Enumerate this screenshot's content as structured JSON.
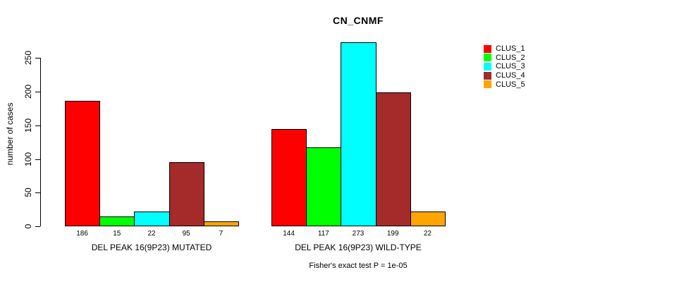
{
  "chart_data": {
    "type": "bar",
    "title": "CN_CNMF",
    "ylabel": "number of cases",
    "yticks": [
      0,
      50,
      100,
      150,
      200,
      250
    ],
    "ylim": [
      0,
      273
    ],
    "grid": false,
    "legend_position": "right",
    "categories": [
      "DEL PEAK 16(9P23) MUTATED",
      "DEL PEAK 16(9P23) WILD-TYPE"
    ],
    "series": [
      {
        "name": "CLUS_1",
        "color": "#ff0000",
        "values": [
          186,
          144
        ]
      },
      {
        "name": "CLUS_2",
        "color": "#00ff00",
        "values": [
          15,
          117
        ]
      },
      {
        "name": "CLUS_3",
        "color": "#00ffff",
        "values": [
          22,
          273
        ]
      },
      {
        "name": "CLUS_4",
        "color": "#a52a2a",
        "values": [
          95,
          199
        ]
      },
      {
        "name": "CLUS_5",
        "color": "#ffa500",
        "values": [
          7,
          22
        ]
      }
    ],
    "bar_value_labels": [
      [
        "186",
        "15",
        "22",
        "95",
        "7"
      ],
      [
        "144",
        "117",
        "273",
        "199",
        "22"
      ]
    ],
    "footnote": "Fisher's exact test P = 1e-05"
  }
}
